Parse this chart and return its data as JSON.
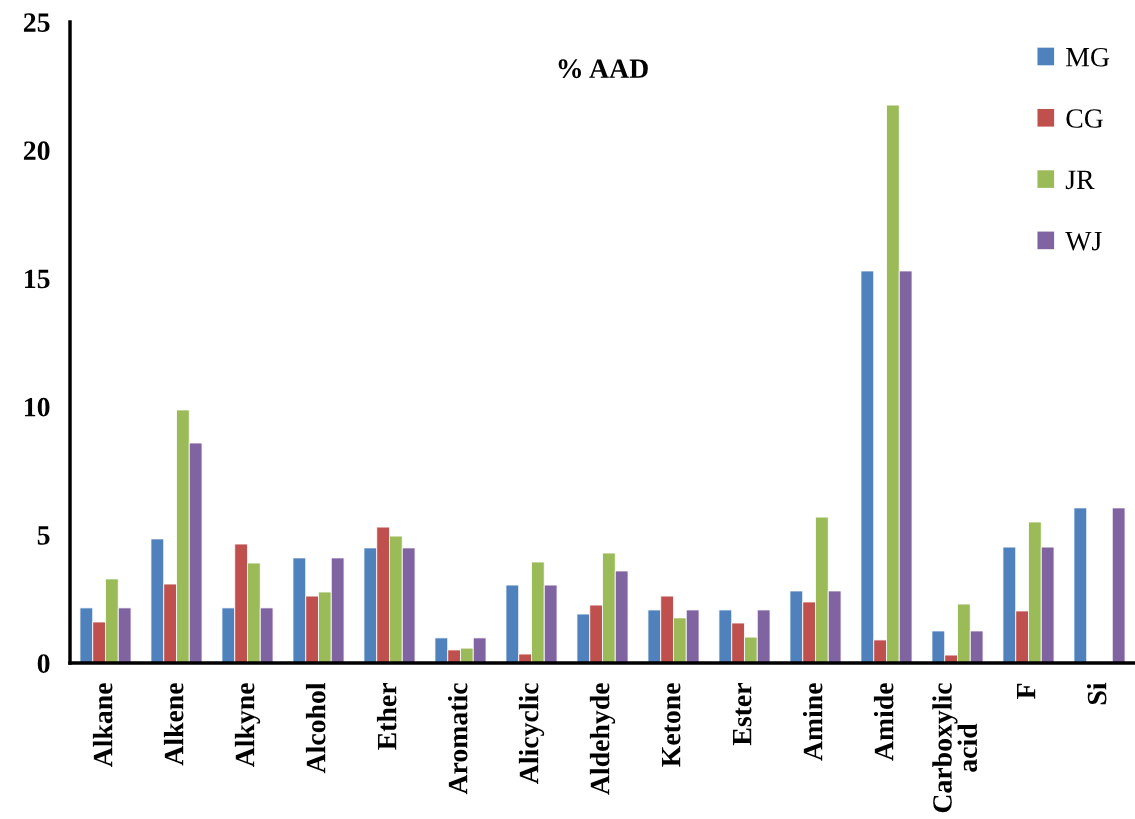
{
  "chart_data": {
    "type": "bar",
    "title": "% AAD",
    "categories": [
      "Alkane",
      "Alkene",
      "Alkyne",
      "Alcohol",
      "Ether",
      "Aromatic",
      "Alicyclic",
      "Aldehyde",
      "Ketone",
      "Ester",
      "Amine",
      "Amide",
      "Carboxylic\nacid",
      "F",
      "Si"
    ],
    "series": [
      {
        "name": "MG",
        "color": "#4f81bd",
        "values": [
          2.15,
          4.84,
          2.15,
          4.1,
          4.49,
          0.98,
          3.04,
          1.91,
          2.07,
          2.07,
          2.81,
          15.29,
          1.25,
          4.52,
          6.05
        ]
      },
      {
        "name": "CG",
        "color": "#c0504d",
        "values": [
          1.6,
          3.08,
          4.64,
          2.61,
          5.3,
          0.51,
          0.35,
          2.26,
          2.61,
          1.56,
          2.38,
          0.9,
          0.31,
          2.03,
          null
        ]
      },
      {
        "name": "JR",
        "color": "#9bbb59",
        "values": [
          3.28,
          9.87,
          3.9,
          2.77,
          4.95,
          0.58,
          3.94,
          4.29,
          1.76,
          1.01,
          5.69,
          21.76,
          2.3,
          5.5,
          null
        ]
      },
      {
        "name": "WJ",
        "color": "#8064a2",
        "values": [
          2.15,
          8.58,
          2.15,
          4.1,
          4.49,
          0.98,
          3.04,
          3.59,
          2.07,
          2.07,
          2.81,
          15.29,
          1.25,
          4.52,
          6.05
        ]
      }
    ],
    "ylim": [
      0,
      25
    ],
    "yticks": [
      0,
      5,
      10,
      15,
      20,
      25
    ],
    "grid": false,
    "legend": "top right"
  }
}
